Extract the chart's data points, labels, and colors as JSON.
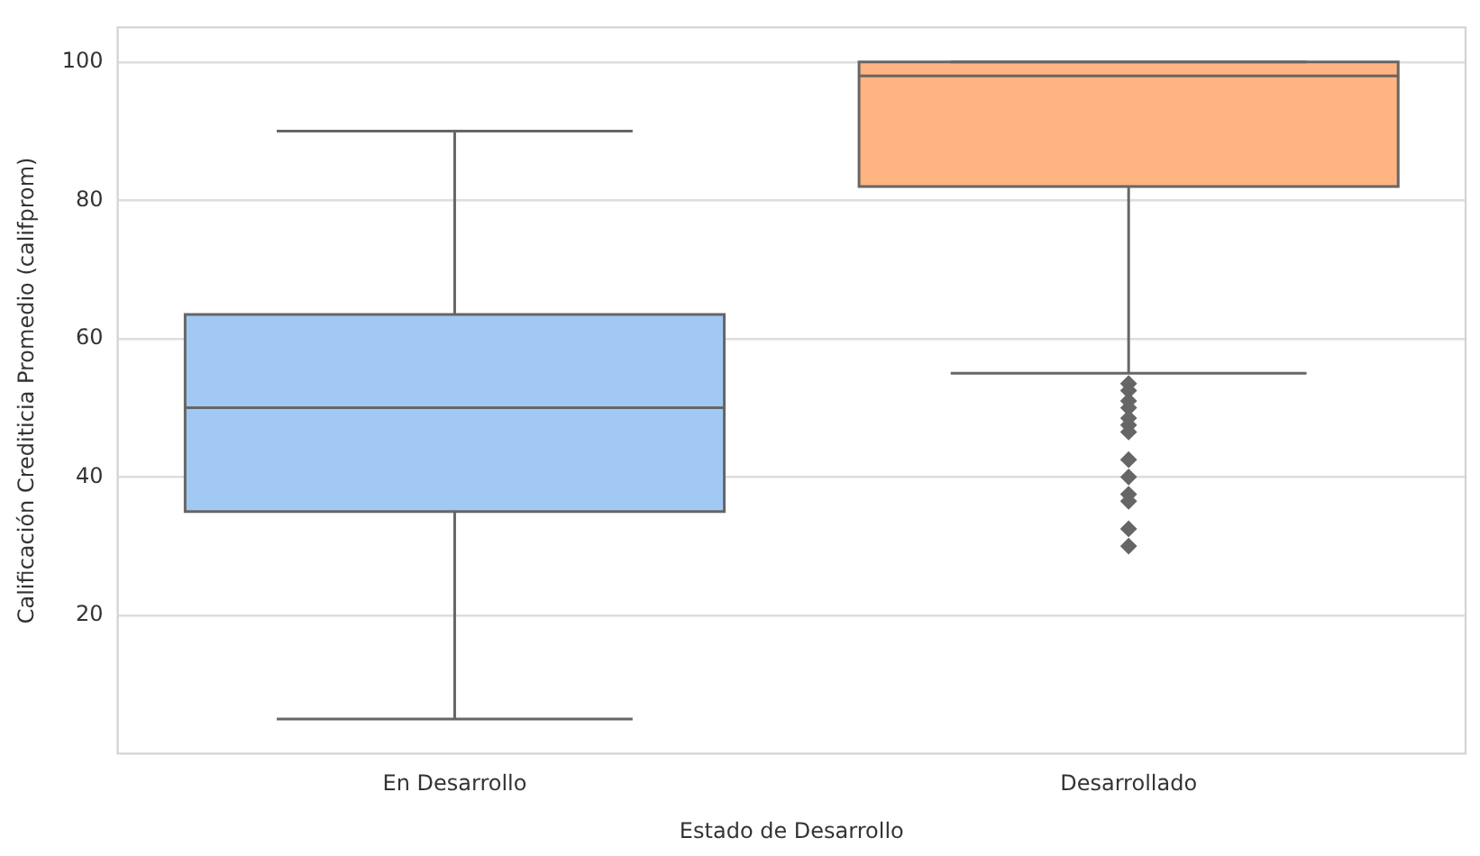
{
  "chart_data": {
    "type": "box",
    "xlabel": "Estado de Desarrollo",
    "ylabel": "Calificación Crediticia Promedio (califprom)",
    "categories": [
      "En Desarrollo",
      "Desarrollado"
    ],
    "colors": [
      "#a1c9f4",
      "#ffb482"
    ],
    "boxes": [
      {
        "low": 5,
        "q1": 35,
        "median": 50,
        "q3": 63.5,
        "high": 90
      },
      {
        "low": 55,
        "q1": 82,
        "median": 98,
        "q3": 100,
        "high": 100,
        "outliers": [
          53.5,
          52.5,
          51,
          50,
          48.5,
          47.5,
          46.5,
          42.5,
          40,
          37.5,
          36.5,
          32.5,
          30
        ]
      }
    ],
    "ylim": [
      0,
      105
    ],
    "yticks": [
      20,
      40,
      60,
      80,
      100
    ],
    "grid": "y",
    "legend": false,
    "marker": "diamond"
  }
}
